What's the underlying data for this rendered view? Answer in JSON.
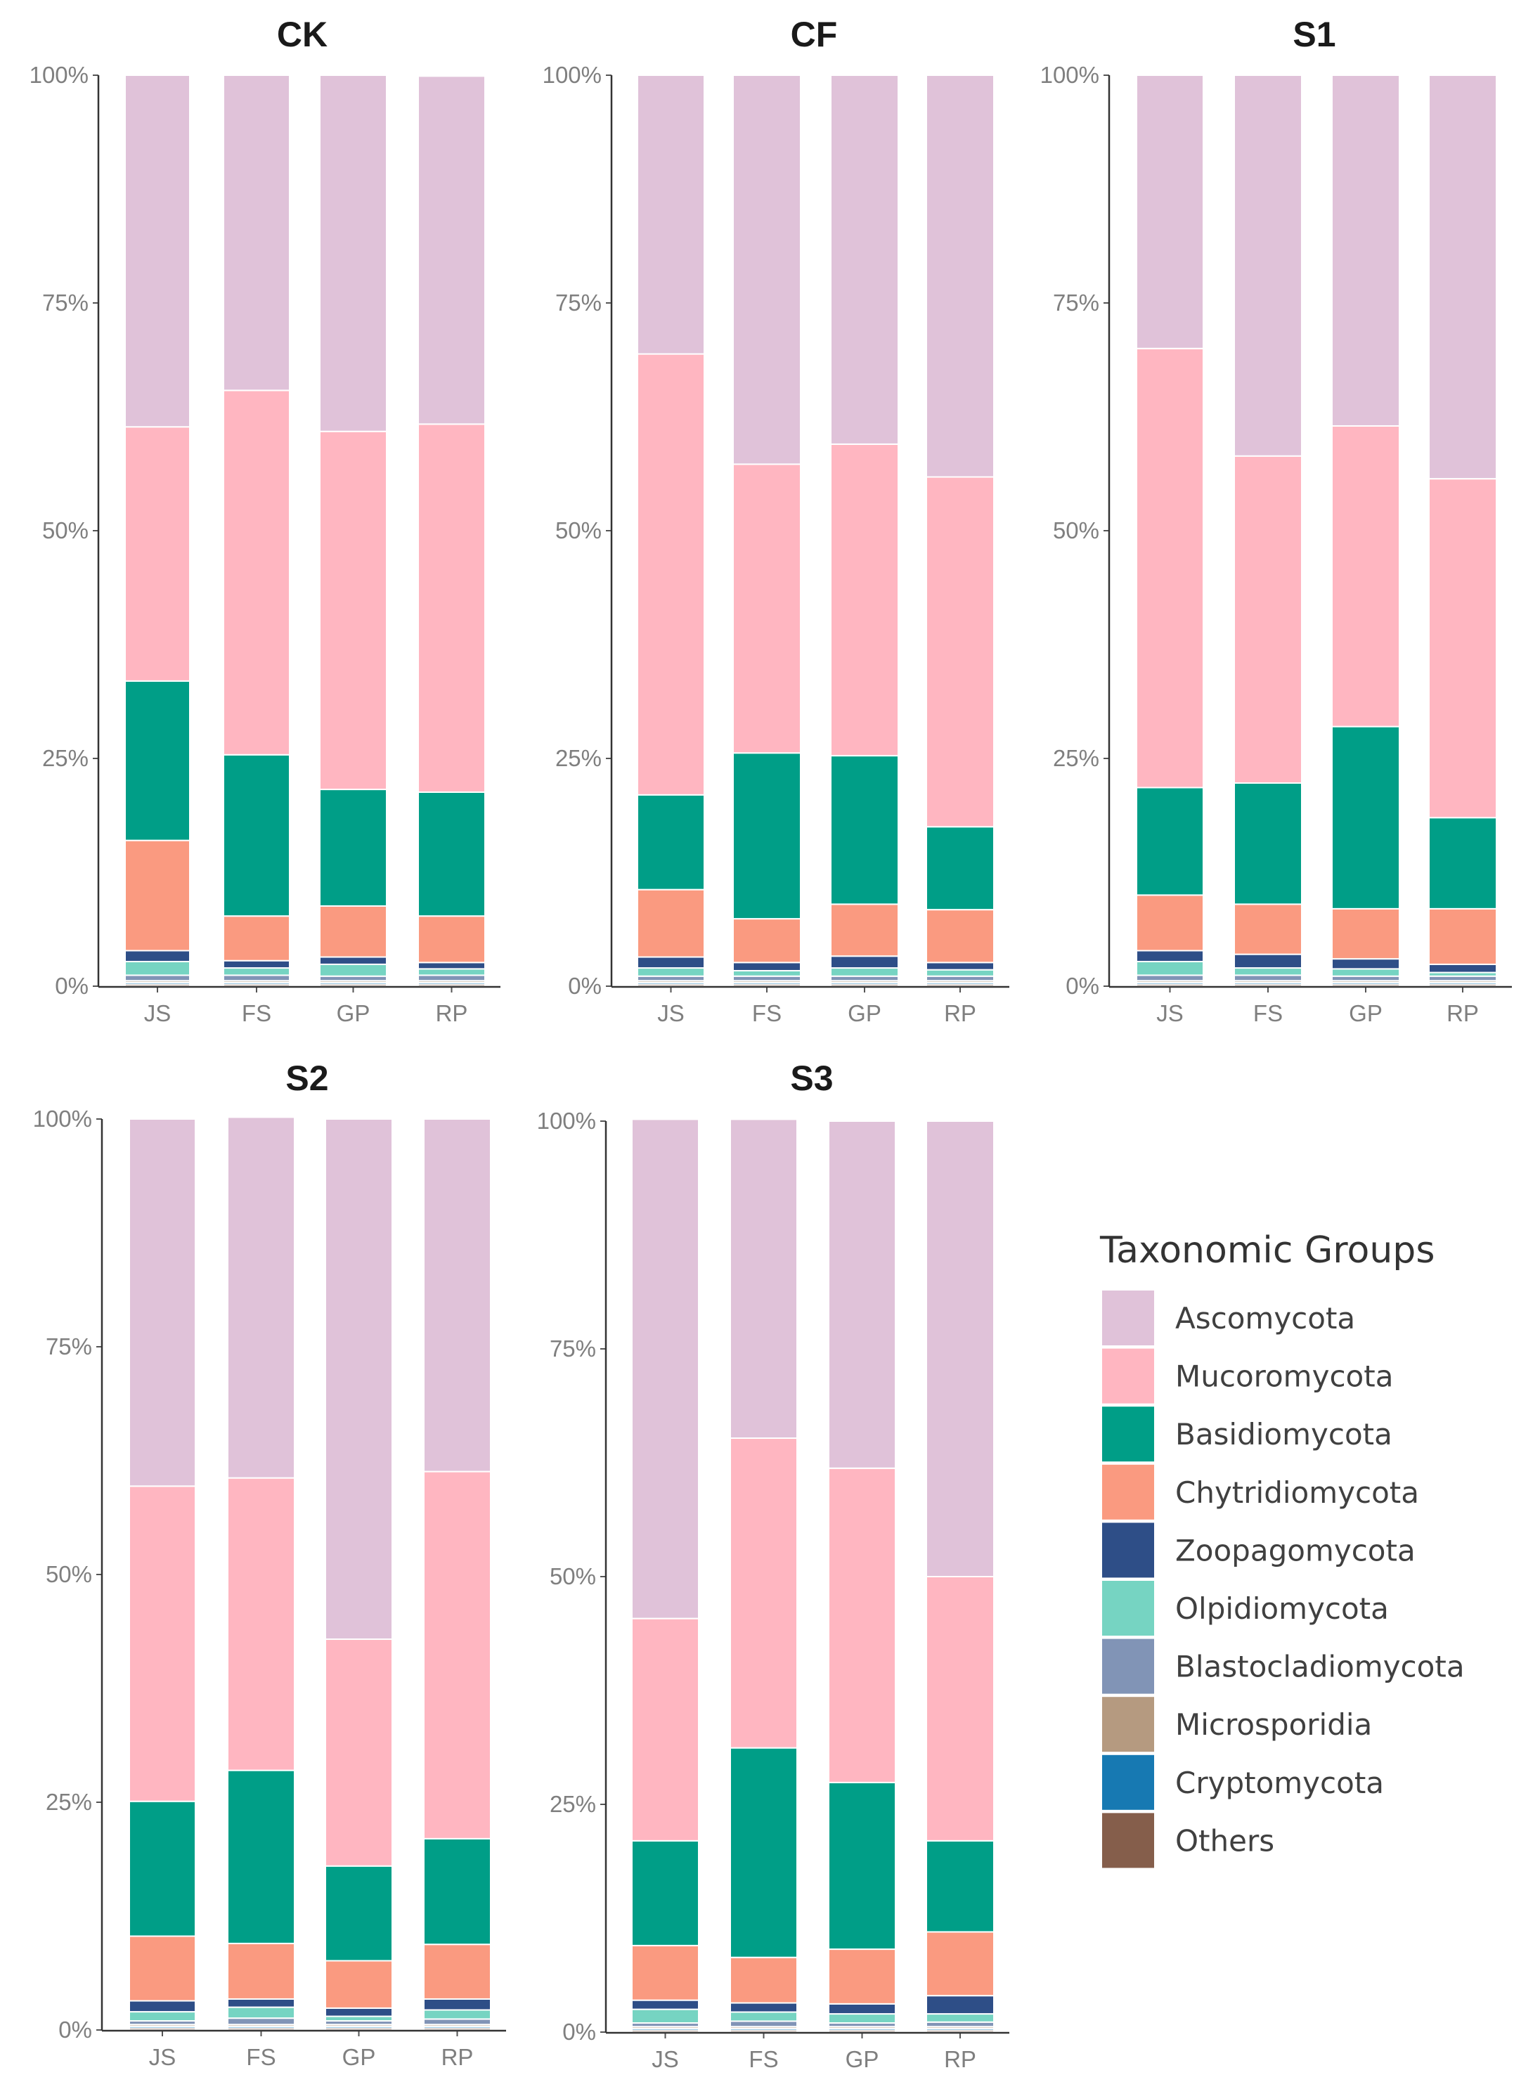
{
  "chart_data": [
    {
      "type": "bar",
      "stacked": true,
      "title": "CK",
      "categories": [
        "JS",
        "FS",
        "GP",
        "RP"
      ],
      "ylim": [
        0,
        1
      ],
      "yticks": [
        "0%",
        "25%",
        "50%",
        "75%",
        "100%"
      ],
      "series": [
        {
          "name": "Others",
          "values": [
            0.002,
            0.002,
            0.002,
            0.002
          ]
        },
        {
          "name": "Cryptomycota",
          "values": [
            0.002,
            0.002,
            0.002,
            0.002
          ]
        },
        {
          "name": "Microsporidia",
          "values": [
            0.002,
            0.002,
            0.002,
            0.002
          ]
        },
        {
          "name": "Blastocladiomycota",
          "values": [
            0.006,
            0.006,
            0.005,
            0.006
          ]
        },
        {
          "name": "Olpidiomycota",
          "values": [
            0.015,
            0.008,
            0.013,
            0.007
          ]
        },
        {
          "name": "Zoopagomycota",
          "values": [
            0.012,
            0.008,
            0.008,
            0.007
          ]
        },
        {
          "name": "Chytridiomycota",
          "values": [
            0.121,
            0.049,
            0.056,
            0.051
          ]
        },
        {
          "name": "Basidiomycota",
          "values": [
            0.175,
            0.177,
            0.128,
            0.136
          ]
        },
        {
          "name": "Mucoromycota",
          "values": [
            0.279,
            0.4,
            0.393,
            0.404
          ]
        },
        {
          "name": "Ascomycota",
          "values": [
            0.386,
            0.346,
            0.391,
            0.382
          ]
        }
      ]
    },
    {
      "type": "bar",
      "stacked": true,
      "title": "CF",
      "categories": [
        "JS",
        "FS",
        "GP",
        "RP"
      ],
      "ylim": [
        0,
        1
      ],
      "yticks": [
        "0%",
        "25%",
        "50%",
        "75%",
        "100%"
      ],
      "series": [
        {
          "name": "Others",
          "values": [
            0.002,
            0.002,
            0.002,
            0.002
          ]
        },
        {
          "name": "Cryptomycota",
          "values": [
            0.002,
            0.002,
            0.002,
            0.002
          ]
        },
        {
          "name": "Microsporidia",
          "values": [
            0.002,
            0.002,
            0.002,
            0.002
          ]
        },
        {
          "name": "Blastocladiomycota",
          "values": [
            0.005,
            0.005,
            0.005,
            0.005
          ]
        },
        {
          "name": "Olpidiomycota",
          "values": [
            0.009,
            0.006,
            0.009,
            0.007
          ]
        },
        {
          "name": "Zoopagomycota",
          "values": [
            0.012,
            0.009,
            0.013,
            0.008
          ]
        },
        {
          "name": "Chytridiomycota",
          "values": [
            0.074,
            0.048,
            0.057,
            0.058
          ]
        },
        {
          "name": "Basidiomycota",
          "values": [
            0.104,
            0.182,
            0.163,
            0.091
          ]
        },
        {
          "name": "Mucoromycota",
          "values": [
            0.484,
            0.317,
            0.342,
            0.384
          ]
        },
        {
          "name": "Ascomycota",
          "values": [
            0.306,
            0.427,
            0.405,
            0.441
          ]
        }
      ]
    },
    {
      "type": "bar",
      "stacked": true,
      "title": "S1",
      "categories": [
        "JS",
        "FS",
        "GP",
        "RP"
      ],
      "ylim": [
        0,
        1
      ],
      "yticks": [
        "0%",
        "25%",
        "50%",
        "75%",
        "100%"
      ],
      "series": [
        {
          "name": "Others",
          "values": [
            0.002,
            0.002,
            0.002,
            0.002
          ]
        },
        {
          "name": "Cryptomycota",
          "values": [
            0.002,
            0.002,
            0.002,
            0.002
          ]
        },
        {
          "name": "Microsporidia",
          "values": [
            0.002,
            0.002,
            0.002,
            0.002
          ]
        },
        {
          "name": "Blastocladiomycota",
          "values": [
            0.006,
            0.006,
            0.005,
            0.005
          ]
        },
        {
          "name": "Olpidiomycota",
          "values": [
            0.015,
            0.008,
            0.008,
            0.004
          ]
        },
        {
          "name": "Zoopagomycota",
          "values": [
            0.012,
            0.015,
            0.011,
            0.009
          ]
        },
        {
          "name": "Chytridiomycota",
          "values": [
            0.061,
            0.055,
            0.055,
            0.061
          ]
        },
        {
          "name": "Basidiomycota",
          "values": [
            0.118,
            0.133,
            0.2,
            0.1
          ]
        },
        {
          "name": "Mucoromycota",
          "values": [
            0.482,
            0.359,
            0.33,
            0.372
          ]
        },
        {
          "name": "Ascomycota",
          "values": [
            0.3,
            0.418,
            0.385,
            0.443
          ]
        }
      ]
    },
    {
      "type": "bar",
      "stacked": true,
      "title": "S2",
      "categories": [
        "JS",
        "FS",
        "GP",
        "RP"
      ],
      "ylim": [
        0,
        1
      ],
      "yticks": [
        "0%",
        "25%",
        "50%",
        "75%",
        "100%"
      ],
      "series": [
        {
          "name": "Others",
          "values": [
            0.002,
            0.002,
            0.002,
            0.002
          ]
        },
        {
          "name": "Cryptomycota",
          "values": [
            0.002,
            0.002,
            0.002,
            0.002
          ]
        },
        {
          "name": "Microsporidia",
          "values": [
            0.002,
            0.002,
            0.002,
            0.002
          ]
        },
        {
          "name": "Blastocladiomycota",
          "values": [
            0.004,
            0.007,
            0.004,
            0.006
          ]
        },
        {
          "name": "Olpidiomycota",
          "values": [
            0.01,
            0.012,
            0.005,
            0.01
          ]
        },
        {
          "name": "Zoopagomycota",
          "values": [
            0.012,
            0.009,
            0.009,
            0.012
          ]
        },
        {
          "name": "Chytridiomycota",
          "values": [
            0.071,
            0.061,
            0.052,
            0.06
          ]
        },
        {
          "name": "Basidiomycota",
          "values": [
            0.148,
            0.19,
            0.104,
            0.116
          ]
        },
        {
          "name": "Mucoromycota",
          "values": [
            0.346,
            0.321,
            0.249,
            0.403
          ]
        },
        {
          "name": "Ascomycota",
          "values": [
            0.403,
            0.396,
            0.571,
            0.387
          ]
        }
      ]
    },
    {
      "type": "bar",
      "stacked": true,
      "title": "S3",
      "categories": [
        "JS",
        "FS",
        "GP",
        "RP"
      ],
      "ylim": [
        0,
        1
      ],
      "yticks": [
        "0%",
        "25%",
        "50%",
        "75%",
        "100%"
      ],
      "series": [
        {
          "name": "Others",
          "values": [
            0.002,
            0.002,
            0.002,
            0.002
          ]
        },
        {
          "name": "Cryptomycota",
          "values": [
            0.002,
            0.002,
            0.002,
            0.002
          ]
        },
        {
          "name": "Microsporidia",
          "values": [
            0.002,
            0.002,
            0.002,
            0.002
          ]
        },
        {
          "name": "Blastocladiomycota",
          "values": [
            0.004,
            0.006,
            0.004,
            0.005
          ]
        },
        {
          "name": "Olpidiomycota",
          "values": [
            0.015,
            0.01,
            0.01,
            0.009
          ]
        },
        {
          "name": "Zoopagomycota",
          "values": [
            0.01,
            0.01,
            0.011,
            0.02
          ]
        },
        {
          "name": "Chytridiomycota",
          "values": [
            0.06,
            0.05,
            0.06,
            0.07
          ]
        },
        {
          "name": "Basidiomycota",
          "values": [
            0.115,
            0.23,
            0.183,
            0.1
          ]
        },
        {
          "name": "Mucoromycota",
          "values": [
            0.244,
            0.34,
            0.345,
            0.29
          ]
        },
        {
          "name": "Ascomycota",
          "values": [
            0.548,
            0.35,
            0.381,
            0.5
          ]
        }
      ]
    }
  ],
  "legend": {
    "title": "Taxonomic Groups",
    "items": [
      {
        "label": "Ascomycota",
        "color": "#E0C2D9"
      },
      {
        "label": "Mucoromycota",
        "color": "#FFB6C1"
      },
      {
        "label": "Basidiomycota",
        "color": "#009E87"
      },
      {
        "label": "Chytridiomycota",
        "color": "#FA9A80"
      },
      {
        "label": "Zoopagomycota",
        "color": "#2E4E87"
      },
      {
        "label": "Olpidiomycota",
        "color": "#76D4C2"
      },
      {
        "label": "Blastocladiomycota",
        "color": "#8194B6"
      },
      {
        "label": "Microsporidia",
        "color": "#B59A80"
      },
      {
        "label": "Cryptomycota",
        "color": "#1779B2"
      },
      {
        "label": "Others",
        "color": "#855E4B"
      }
    ]
  }
}
